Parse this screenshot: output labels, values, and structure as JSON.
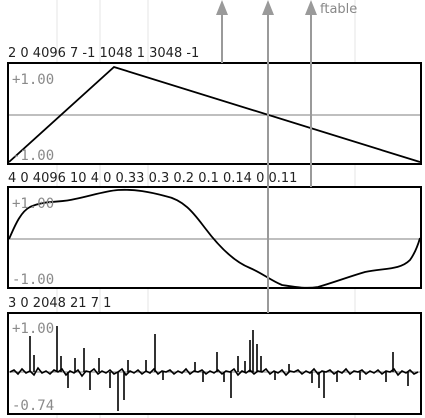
{
  "outlet_label": "ftable",
  "panels": [
    {
      "id": "gen7",
      "gen_args": "2 0 4096 7 -1 1048 1 3048 -1",
      "ymax_label": "+1.00",
      "ymin_label": "-1.00"
    },
    {
      "id": "gen10",
      "gen_args": "4 0 4096 10 4 0 0.33 0.3 0.2 0.1 0.14 0 0.11",
      "ymax_label": "+1.00",
      "ymin_label": "-1.00"
    },
    {
      "id": "gen21",
      "gen_args": "3 0 2048 21 7 1",
      "ymax_label": "+1.00",
      "ymin_label": "-0.74"
    }
  ]
}
